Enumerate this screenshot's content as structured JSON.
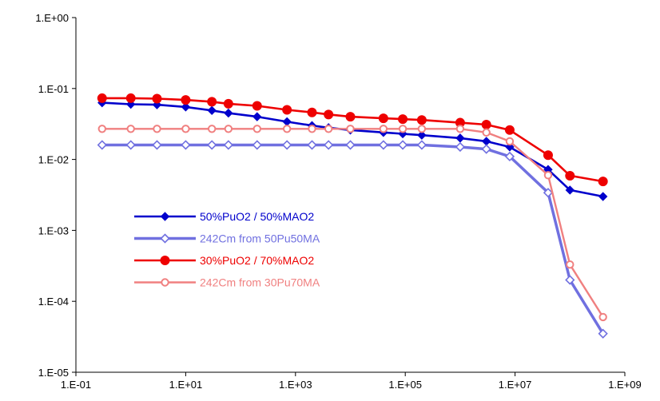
{
  "chart_data": {
    "type": "line",
    "title": "",
    "xlabel": "",
    "ylabel": "",
    "x_scale": "log",
    "y_scale": "log",
    "xlim": [
      0.1,
      1000000000
    ],
    "ylim": [
      1e-05,
      1
    ],
    "grid": false,
    "legend_position": "center-left",
    "x_ticks": [
      {
        "value": 0.1,
        "label": "1.E-01"
      },
      {
        "value": 10,
        "label": "1.E+01"
      },
      {
        "value": 1000,
        "label": "1.E+03"
      },
      {
        "value": 100000,
        "label": "1.E+05"
      },
      {
        "value": 10000000,
        "label": "1.E+07"
      },
      {
        "value": 1000000000,
        "label": "1.E+09"
      }
    ],
    "y_ticks": [
      {
        "value": 1,
        "label": "1.E+00"
      },
      {
        "value": 0.1,
        "label": "1.E-01"
      },
      {
        "value": 0.01,
        "label": "1.E-02"
      },
      {
        "value": 0.001,
        "label": "1.E-03"
      },
      {
        "value": 0.0001,
        "label": "1.E-04"
      },
      {
        "value": 1e-05,
        "label": "1.E-05"
      }
    ],
    "series": [
      {
        "name": "50%PuO2 / 50%MAO2",
        "color": "#0000cc",
        "marker": "filled-diamond",
        "x": [
          0.3,
          1,
          3,
          10,
          30,
          60,
          200,
          700,
          2000,
          4000,
          10000,
          40000,
          90000,
          200000,
          1000000,
          3000000,
          8000000,
          40000000,
          100000000,
          400000000
        ],
        "y": [
          0.063,
          0.06,
          0.059,
          0.055,
          0.049,
          0.045,
          0.04,
          0.034,
          0.03,
          0.028,
          0.026,
          0.024,
          0.023,
          0.022,
          0.02,
          0.018,
          0.015,
          0.0072,
          0.0037,
          0.003
        ]
      },
      {
        "name": "242Cm from 50Pu50MA",
        "color": "#7070e0",
        "marker": "open-diamond",
        "x": [
          0.3,
          1,
          3,
          10,
          30,
          60,
          200,
          700,
          2000,
          4000,
          10000,
          40000,
          90000,
          200000,
          1000000,
          3000000,
          8000000,
          40000000,
          100000000,
          400000000
        ],
        "y": [
          0.016,
          0.016,
          0.016,
          0.016,
          0.016,
          0.016,
          0.016,
          0.016,
          0.016,
          0.016,
          0.016,
          0.016,
          0.016,
          0.016,
          0.015,
          0.014,
          0.011,
          0.0034,
          0.0002,
          3.5e-05
        ]
      },
      {
        "name": "30%PuO2 / 70%MAO2",
        "color": "#ee0000",
        "marker": "filled-circle",
        "x": [
          0.3,
          1,
          3,
          10,
          30,
          60,
          200,
          700,
          2000,
          4000,
          10000,
          40000,
          90000,
          200000,
          1000000,
          3000000,
          8000000,
          40000000,
          100000000,
          400000000
        ],
        "y": [
          0.073,
          0.073,
          0.072,
          0.069,
          0.065,
          0.061,
          0.057,
          0.05,
          0.046,
          0.043,
          0.04,
          0.038,
          0.037,
          0.036,
          0.033,
          0.031,
          0.026,
          0.0115,
          0.0059,
          0.0049
        ]
      },
      {
        "name": "242Cm from 30Pu70MA",
        "color": "#f08080",
        "marker": "open-circle",
        "x": [
          0.3,
          1,
          3,
          10,
          30,
          60,
          200,
          700,
          2000,
          4000,
          10000,
          40000,
          90000,
          200000,
          1000000,
          3000000,
          8000000,
          40000000,
          100000000,
          400000000
        ],
        "y": [
          0.027,
          0.027,
          0.027,
          0.027,
          0.027,
          0.027,
          0.027,
          0.027,
          0.027,
          0.027,
          0.027,
          0.027,
          0.027,
          0.027,
          0.027,
          0.024,
          0.018,
          0.006,
          0.00033,
          6e-05
        ]
      }
    ]
  }
}
